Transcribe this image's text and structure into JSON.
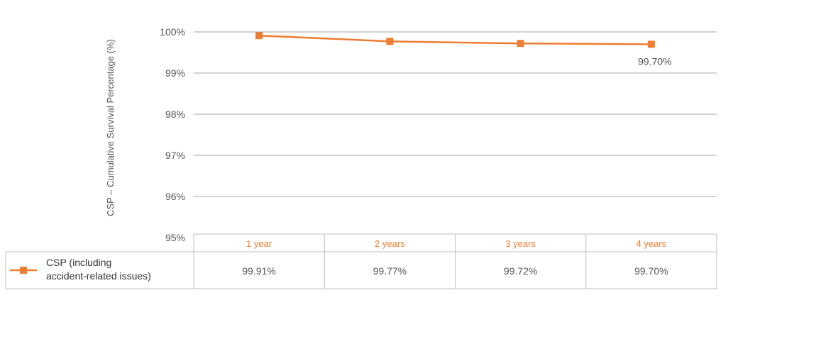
{
  "chart_data": {
    "type": "line",
    "ylabel": "CSP – Cumulative Survival Percentage (%)",
    "ylim": [
      95,
      100
    ],
    "yticks": [
      95,
      96,
      97,
      98,
      99,
      100
    ],
    "ytick_labels": [
      "95%",
      "96%",
      "97%",
      "98%",
      "99%",
      "100%"
    ],
    "grid": true,
    "categories": [
      "1 year",
      "2 years",
      "3 years",
      "4 years"
    ],
    "series": [
      {
        "name": "CSP (including accident-related issues)",
        "legend_lines": [
          "CSP (including",
          "accident-related issues)"
        ],
        "values": [
          99.91,
          99.77,
          99.72,
          99.7
        ],
        "value_labels": [
          "99.91%",
          "99.77%",
          "99.72%",
          "99.70%"
        ]
      }
    ],
    "annotation": "99.70%",
    "legend_position": "bottom-left data table",
    "colors": {
      "series": "#ed7d31",
      "grid": "#a6a6a6",
      "category_text": "#ed7d31",
      "text": "#555555"
    }
  }
}
